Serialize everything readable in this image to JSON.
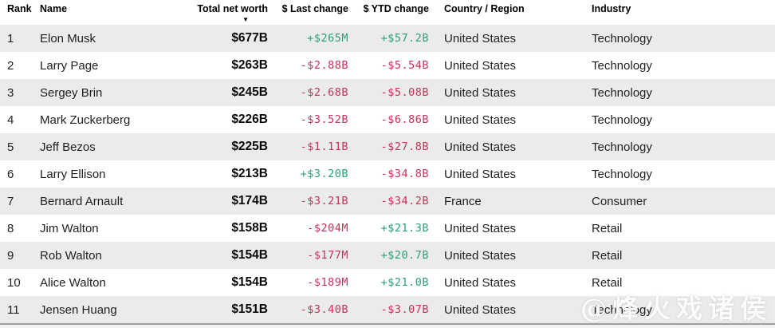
{
  "table": {
    "columns": {
      "rank": "Rank",
      "name": "Name",
      "net_worth": "Total net worth",
      "last_change": "$ Last change",
      "ytd_change": "$ YTD change",
      "country": "Country / Region",
      "industry": "Industry"
    },
    "sort": {
      "column": "Total net worth",
      "direction": "descending",
      "indicator": "▼"
    },
    "rows": [
      {
        "rank": "1",
        "name": "Elon Musk",
        "net_worth": "$677B",
        "last_change": "+$265M",
        "ytd_change": "+$57.2B",
        "country": "United States",
        "industry": "Technology"
      },
      {
        "rank": "2",
        "name": "Larry Page",
        "net_worth": "$263B",
        "last_change": "-$2.88B",
        "ytd_change": "-$5.54B",
        "country": "United States",
        "industry": "Technology"
      },
      {
        "rank": "3",
        "name": "Sergey Brin",
        "net_worth": "$245B",
        "last_change": "-$2.68B",
        "ytd_change": "-$5.08B",
        "country": "United States",
        "industry": "Technology"
      },
      {
        "rank": "4",
        "name": "Mark Zuckerberg",
        "net_worth": "$226B",
        "last_change": "-$3.52B",
        "ytd_change": "-$6.86B",
        "country": "United States",
        "industry": "Technology"
      },
      {
        "rank": "5",
        "name": "Jeff Bezos",
        "net_worth": "$225B",
        "last_change": "-$1.11B",
        "ytd_change": "-$27.8B",
        "country": "United States",
        "industry": "Technology"
      },
      {
        "rank": "6",
        "name": "Larry Ellison",
        "net_worth": "$213B",
        "last_change": "+$3.20B",
        "ytd_change": "-$34.8B",
        "country": "United States",
        "industry": "Technology"
      },
      {
        "rank": "7",
        "name": "Bernard Arnault",
        "net_worth": "$174B",
        "last_change": "-$3.21B",
        "ytd_change": "-$34.2B",
        "country": "France",
        "industry": "Consumer"
      },
      {
        "rank": "8",
        "name": "Jim Walton",
        "net_worth": "$158B",
        "last_change": "-$204M",
        "ytd_change": "+$21.3B",
        "country": "United States",
        "industry": "Retail"
      },
      {
        "rank": "9",
        "name": "Rob Walton",
        "net_worth": "$154B",
        "last_change": "-$177M",
        "ytd_change": "+$20.7B",
        "country": "United States",
        "industry": "Retail"
      },
      {
        "rank": "10",
        "name": "Alice Walton",
        "net_worth": "$154B",
        "last_change": "-$189M",
        "ytd_change": "+$21.0B",
        "country": "United States",
        "industry": "Retail"
      },
      {
        "rank": "11",
        "name": "Jensen Huang",
        "net_worth": "$151B",
        "last_change": "-$3.40B",
        "ytd_change": "-$3.07B",
        "country": "United States",
        "industry": "Technology"
      }
    ]
  },
  "watermark": {
    "text": "@烽火戏诸侯"
  },
  "colors": {
    "positive": "#2d9f77",
    "negative": "#c8315b",
    "row_alt": "#ebebeb",
    "header_text": "#000000"
  }
}
